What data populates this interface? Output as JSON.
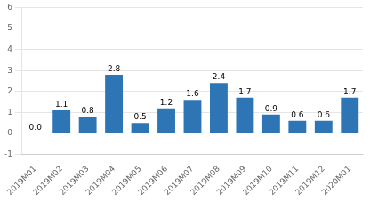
{
  "chart_data": {
    "type": "bar",
    "categories": [
      "2019M01",
      "2019M02",
      "2019M03",
      "2019M04",
      "2019M05",
      "2019M06",
      "2019M07",
      "2019M08",
      "2019M09",
      "2019M10",
      "2019M11",
      "2019M12",
      "2020M01"
    ],
    "values": [
      0.0,
      1.1,
      0.8,
      2.8,
      0.5,
      1.2,
      1.6,
      2.4,
      1.7,
      0.9,
      0.6,
      0.6,
      1.7
    ],
    "value_labels": [
      "0.0",
      "1.1",
      "0.8",
      "2.8",
      "0.5",
      "1.2",
      "1.6",
      "2.4",
      "1.7",
      "0.9",
      "0.6",
      "0.6",
      "1.7"
    ],
    "color": "#2e75b6",
    "ylim": [
      -1,
      6
    ],
    "yticks": [
      -1,
      0,
      1,
      2,
      3,
      4,
      5,
      6
    ],
    "grid": true,
    "data_labels": true
  }
}
